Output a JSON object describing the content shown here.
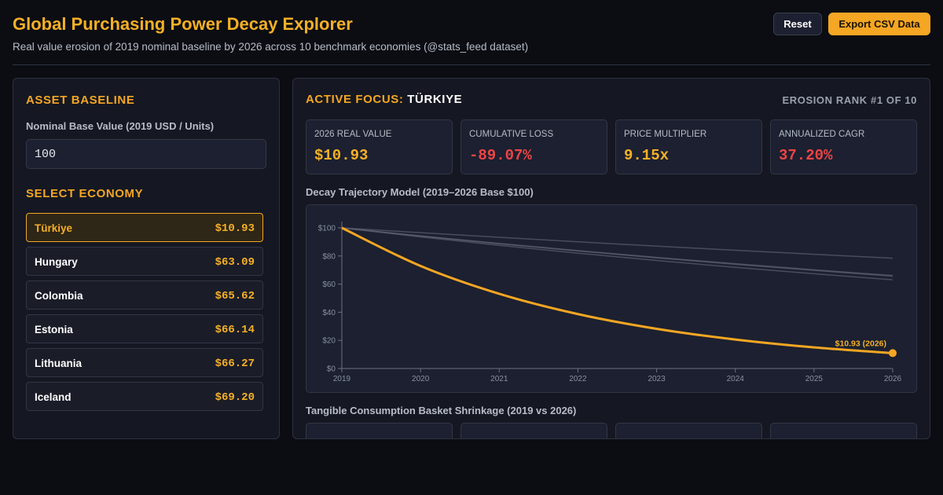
{
  "header": {
    "title": "Global Purchasing Power Decay Explorer",
    "subtitle": "Real value erosion of 2019 nominal baseline by 2026 across 10 benchmark economies (@stats_feed dataset)",
    "reset_label": "Reset",
    "export_label": "Export CSV Data"
  },
  "sidebar": {
    "asset_title": "ASSET BASELINE",
    "base_label": "Nominal Base Value (2019 USD / Units)",
    "base_value": "100",
    "select_title": "SELECT ECONOMY",
    "economies": [
      {
        "name": "Türkiye",
        "value": "$10.93",
        "active": true
      },
      {
        "name": "Hungary",
        "value": "$63.09",
        "active": false
      },
      {
        "name": "Colombia",
        "value": "$65.62",
        "active": false
      },
      {
        "name": "Estonia",
        "value": "$66.14",
        "active": false
      },
      {
        "name": "Lithuania",
        "value": "$66.27",
        "active": false
      },
      {
        "name": "Iceland",
        "value": "$69.20",
        "active": false
      }
    ]
  },
  "focus": {
    "label": "ACTIVE FOCUS:",
    "country": "TÜRKIYE",
    "rank": "EROSION RANK #1 OF 10",
    "stats": [
      {
        "label": "2026 REAL VALUE",
        "value": "$10.93",
        "tone": "gold"
      },
      {
        "label": "CUMULATIVE LOSS",
        "value": "-89.07%",
        "tone": "red"
      },
      {
        "label": "PRICE MULTIPLIER",
        "value": "9.15x",
        "tone": "gold"
      },
      {
        "label": "ANNUALIZED CAGR",
        "value": "37.20%",
        "tone": "red"
      }
    ]
  },
  "chart_title": "Decay Trajectory Model (2019–2026 Base $100)",
  "basket_title": "Tangible Consumption Basket Shrinkage (2019 vs 2026)",
  "chart_data": {
    "type": "line",
    "title": "",
    "xlabel": "",
    "ylabel": "",
    "x": [
      2019,
      2020,
      2021,
      2022,
      2023,
      2024,
      2025,
      2026
    ],
    "y_ticks": [
      "$0",
      "$20",
      "$40",
      "$60",
      "$80",
      "$100"
    ],
    "ylim": [
      0,
      100
    ],
    "focus_color": "#f5a623",
    "other_color": "#5b6072",
    "series": [
      {
        "values": [
          100,
          72.9,
          53.1,
          38.7,
          28.2,
          20.6,
          15.0,
          10.93
        ],
        "focus": true
      },
      {
        "values": [
          100,
          93.6,
          87.6,
          82.0,
          76.8,
          71.9,
          67.4,
          63.09
        ],
        "focus": false
      },
      {
        "values": [
          100,
          94.2,
          88.7,
          83.6,
          78.7,
          74.1,
          69.8,
          65.62
        ],
        "focus": false
      },
      {
        "values": [
          100,
          94.3,
          88.9,
          83.8,
          79.0,
          74.5,
          70.2,
          66.14
        ],
        "focus": false
      },
      {
        "values": [
          100,
          96.6,
          93.3,
          90.1,
          87.0,
          84.1,
          81.2,
          78.4
        ],
        "focus": false
      }
    ],
    "end_annotation": "$10.93 (2026)"
  }
}
